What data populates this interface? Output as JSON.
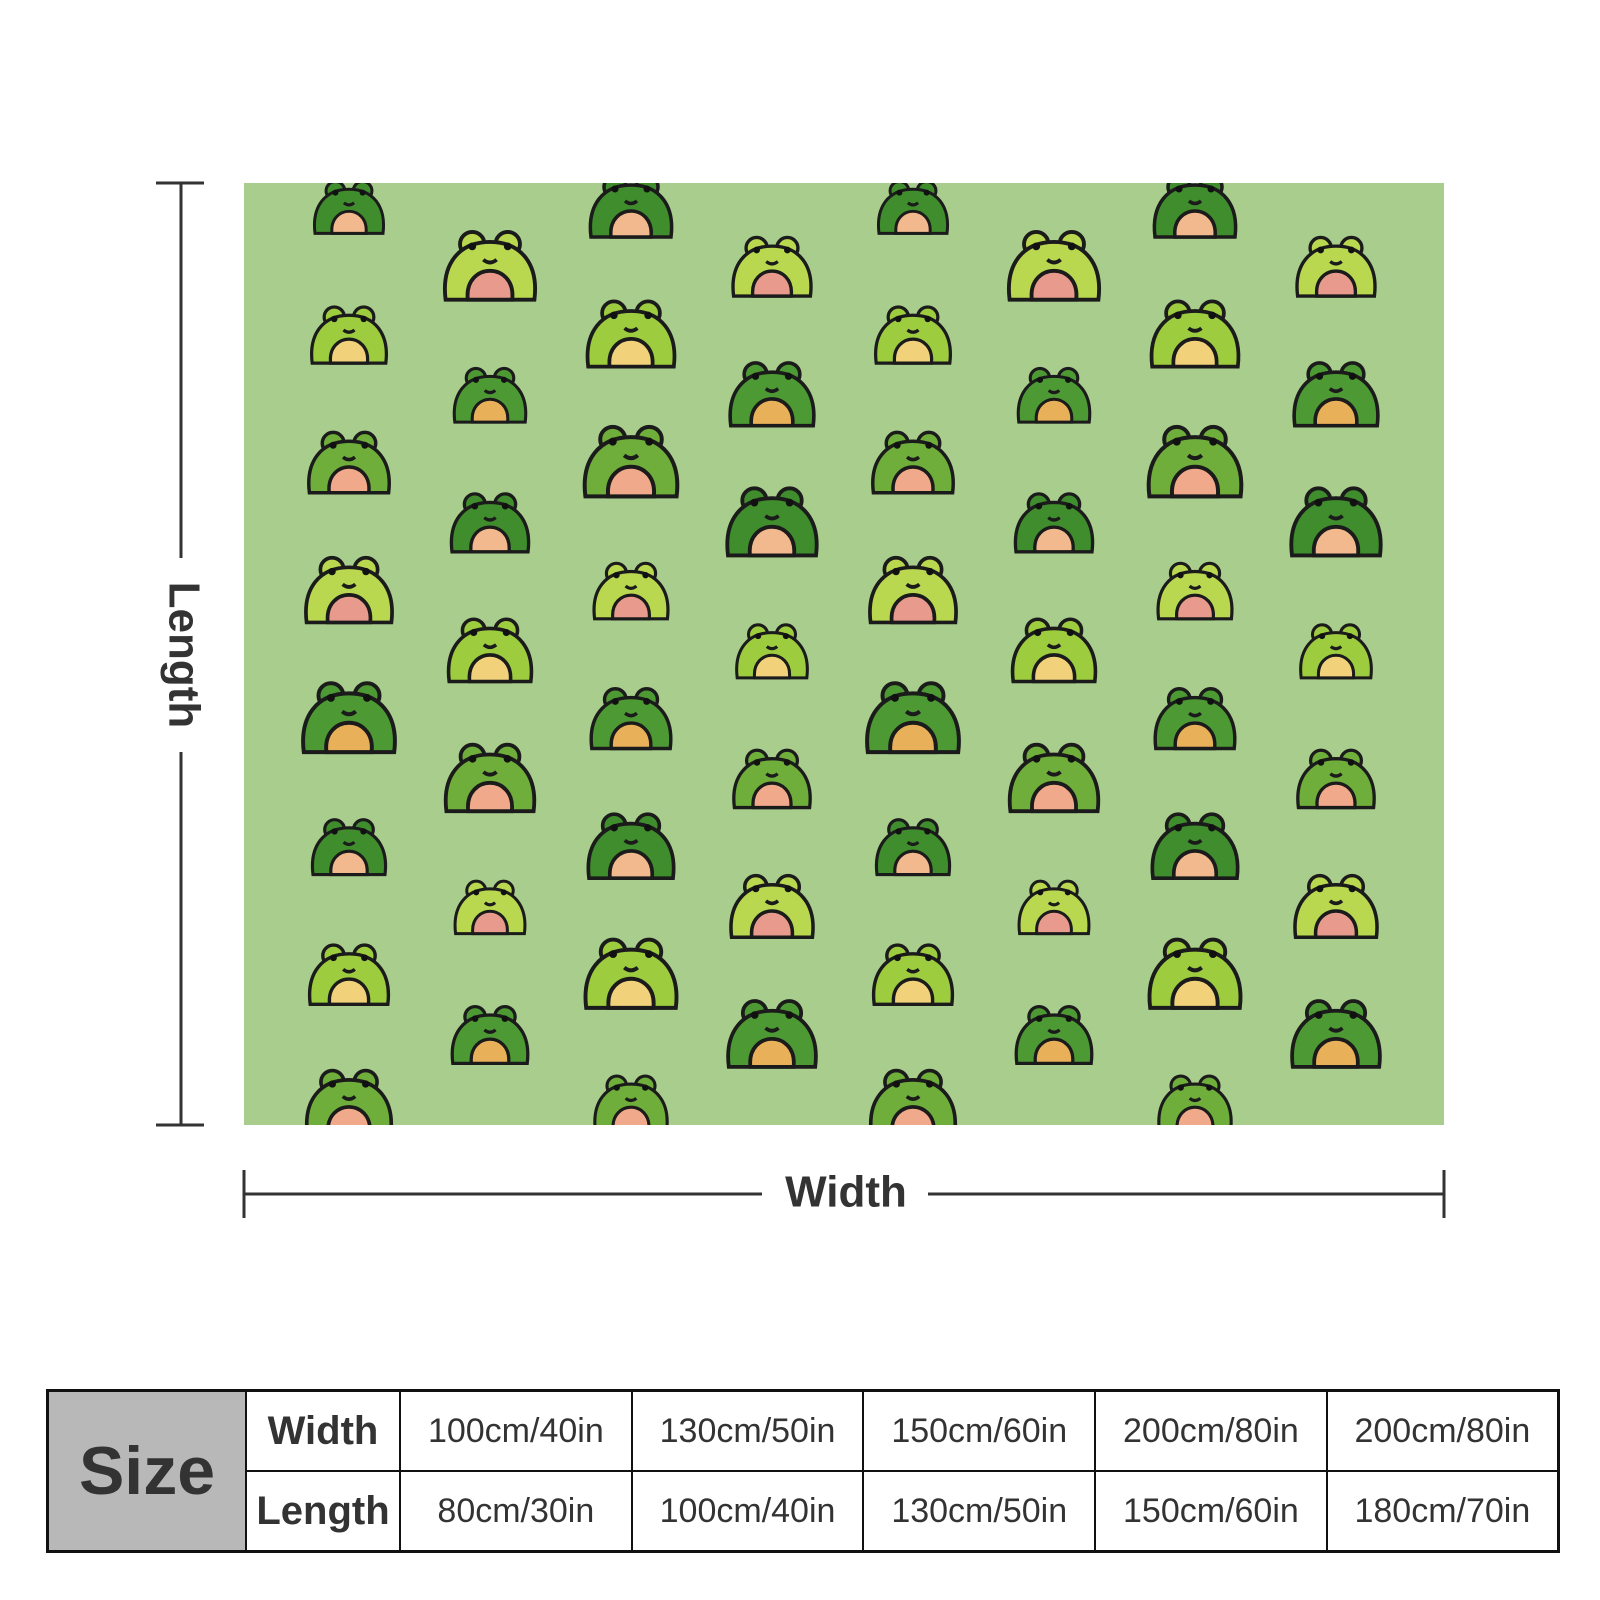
{
  "product_image": {
    "background_color": "#a8cd8d",
    "frog_colors": [
      "#3f8d2c",
      "#9dcc3f",
      "#6fae3a",
      "#b9d84f",
      "#4d9a34"
    ],
    "belly_colors": [
      "#f2b98e",
      "#f0a98a",
      "#e9b05a",
      "#f1d27a",
      "#e89b8c"
    ]
  },
  "dimensions": {
    "length_label": "Length",
    "width_label": "Width"
  },
  "size_table": {
    "header": "Size",
    "width_label": "Width",
    "length_label": "Length",
    "widths": [
      "100cm/40in",
      "130cm/50in",
      "150cm/60in",
      "200cm/80in",
      "200cm/80in"
    ],
    "lengths": [
      "80cm/30in",
      "100cm/40in",
      "130cm/50in",
      "150cm/60in",
      "180cm/70in"
    ]
  }
}
